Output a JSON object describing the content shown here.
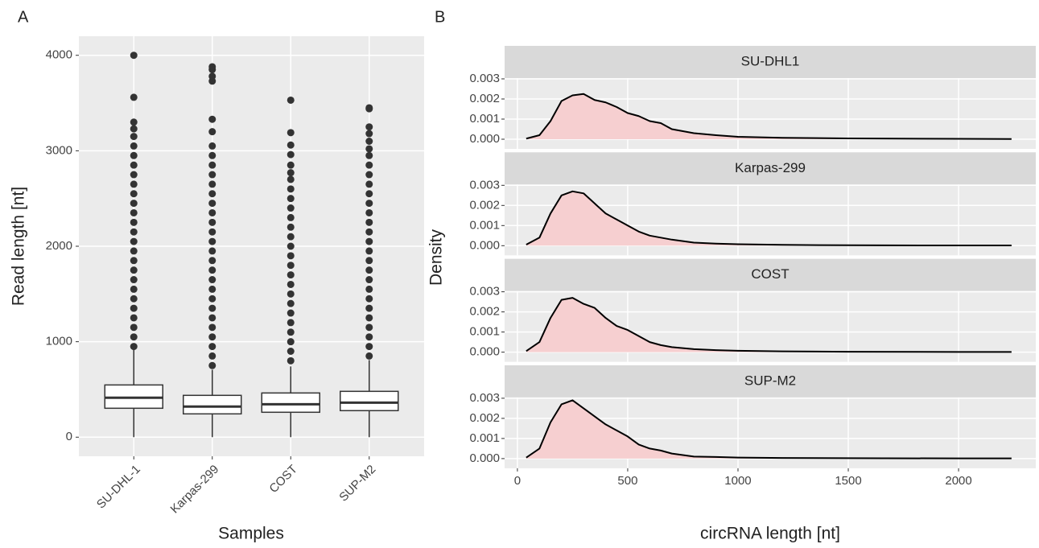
{
  "chart_data": [
    {
      "type": "box",
      "panel_label": "A",
      "x_label": "Samples",
      "y_label": "Read length [nt]",
      "categories": [
        "SU-DHL-1",
        "Karpas-299",
        "COST",
        "SUP-M2"
      ],
      "boxes": [
        {
          "min": 0,
          "q1": 303,
          "median": 413,
          "q3": 547,
          "max": 918,
          "outliers": [
            950,
            1050,
            1150,
            1250,
            1350,
            1450,
            1550,
            1650,
            1750,
            1850,
            1950,
            2050,
            2150,
            2250,
            2350,
            2450,
            2550,
            2650,
            2750,
            2850,
            2950,
            3050,
            3150,
            3230,
            3300,
            3560,
            4000
          ]
        },
        {
          "min": 0,
          "q1": 244,
          "median": 320,
          "q3": 438,
          "max": 707,
          "outliers": [
            750,
            850,
            950,
            1050,
            1150,
            1250,
            1350,
            1450,
            1550,
            1650,
            1750,
            1850,
            1950,
            2050,
            2150,
            2250,
            2350,
            2450,
            2550,
            2650,
            2750,
            2850,
            2950,
            3050,
            3200,
            3330,
            3730,
            3780,
            3850,
            3880
          ]
        },
        {
          "min": 0,
          "q1": 261,
          "median": 345,
          "q3": 463,
          "max": 741,
          "outliers": [
            800,
            900,
            1000,
            1100,
            1200,
            1300,
            1400,
            1500,
            1600,
            1700,
            1800,
            1900,
            2000,
            2100,
            2200,
            2300,
            2400,
            2500,
            2600,
            2700,
            2770,
            2850,
            2960,
            3060,
            3190,
            3530
          ]
        },
        {
          "min": 0,
          "q1": 278,
          "median": 362,
          "q3": 480,
          "max": 808,
          "outliers": [
            850,
            950,
            1050,
            1150,
            1250,
            1350,
            1450,
            1550,
            1650,
            1750,
            1850,
            1950,
            2050,
            2150,
            2250,
            2350,
            2450,
            2550,
            2650,
            2750,
            2850,
            2950,
            3020,
            3100,
            3180,
            3250,
            3440,
            3450
          ]
        }
      ],
      "color": "#333333",
      "box_fill": "#ffffff",
      "background": "#ebebeb",
      "ylim": [
        -200,
        4200
      ],
      "yticks": [
        0,
        1000,
        2000,
        3000,
        4000
      ],
      "grid": true
    },
    {
      "type": "density",
      "panel_label": "B",
      "x_label": "circRNA length [nt]",
      "y_label": "Density",
      "x": [
        40,
        100,
        150,
        200,
        250,
        300,
        350,
        400,
        450,
        500,
        550,
        600,
        650,
        700,
        800,
        900,
        1000,
        1200,
        1500,
        2000,
        2240
      ],
      "series": [
        {
          "name": "SU-DHL1",
          "color": "#000000",
          "fill": "#f6cfd0",
          "values": [
            3e-05,
            0.0002,
            0.0009,
            0.0019,
            0.00218,
            0.00225,
            0.00195,
            0.00183,
            0.0016,
            0.0013,
            0.00115,
            0.0009,
            0.0008,
            0.0005,
            0.0003,
            0.0002,
            0.00012,
            7e-05,
            4e-05,
            2e-05,
            1e-05
          ]
        },
        {
          "name": "Karpas-299",
          "color": "#000000",
          "fill": "#f6cfd0",
          "values": [
            5e-05,
            0.0004,
            0.0016,
            0.0025,
            0.0027,
            0.0026,
            0.0021,
            0.0016,
            0.0013,
            0.001,
            0.0007,
            0.0005,
            0.0004,
            0.0003,
            0.00015,
            0.0001,
            7e-05,
            4e-05,
            2e-05,
            1e-05,
            1e-05
          ]
        },
        {
          "name": "COST",
          "color": "#000000",
          "fill": "#f6cfd0",
          "values": [
            5e-05,
            0.0005,
            0.0017,
            0.0026,
            0.0027,
            0.0024,
            0.0022,
            0.0017,
            0.0013,
            0.0011,
            0.0008,
            0.0005,
            0.00035,
            0.00025,
            0.00015,
            0.0001,
            7e-05,
            4e-05,
            2e-05,
            1e-05,
            1e-05
          ]
        },
        {
          "name": "SUP-M2",
          "color": "#000000",
          "fill": "#f6cfd0",
          "values": [
            5e-05,
            0.0005,
            0.0018,
            0.0027,
            0.0029,
            0.0025,
            0.0021,
            0.0017,
            0.0014,
            0.0011,
            0.0007,
            0.0005,
            0.0004,
            0.00025,
            0.0001,
            8e-05,
            5e-05,
            3e-05,
            2e-05,
            1e-05,
            1e-05
          ]
        }
      ],
      "background": "#ebebeb",
      "strip_color": "#d9d9d9",
      "xlim": [
        -58,
        2350
      ],
      "xticks": [
        0,
        500,
        1000,
        1500,
        2000
      ],
      "ylim": [
        -0.00048,
        0.00304
      ],
      "yticks": [
        {
          "value": 0,
          "label": "0.000"
        },
        {
          "value": 0.001,
          "label": "0.001"
        },
        {
          "value": 0.002,
          "label": "0.002"
        },
        {
          "value": 0.003,
          "label": "0.003"
        }
      ],
      "grid": true
    }
  ]
}
